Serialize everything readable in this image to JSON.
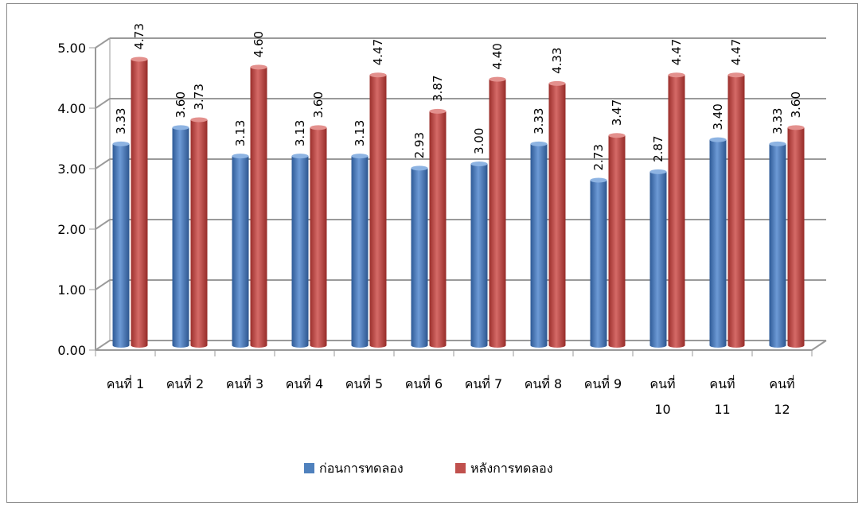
{
  "chart_data": {
    "type": "bar",
    "title": "",
    "xlabel": "",
    "ylabel": "",
    "ylim": [
      0,
      5
    ],
    "yticks": [
      "0.00",
      "1.00",
      "2.00",
      "3.00",
      "4.00",
      "5.00"
    ],
    "grid": true,
    "legend_position": "bottom",
    "categories": [
      [
        "คนที่ 1"
      ],
      [
        "คนที่ 2"
      ],
      [
        "คนที่ 3"
      ],
      [
        "คนที่ 4"
      ],
      [
        "คนที่ 5"
      ],
      [
        "คนที่ 6"
      ],
      [
        "คนที่ 7"
      ],
      [
        "คนที่ 8"
      ],
      [
        "คนที่ 9"
      ],
      [
        "คนที่",
        "10"
      ],
      [
        "คนที่",
        "11"
      ],
      [
        "คนที่",
        "12"
      ]
    ],
    "series": [
      {
        "name": "ก่อนการทดลอง",
        "color": "#4F81BD",
        "values": [
          3.33,
          3.6,
          3.13,
          3.13,
          3.13,
          2.93,
          3.0,
          3.33,
          2.73,
          2.87,
          3.4,
          3.33
        ],
        "labels": [
          "3.33",
          "3.60",
          "3.13",
          "3.13",
          "3.13",
          "2.93",
          "3.00",
          "3.33",
          "2.73",
          "2.87",
          "3.40",
          "3.33"
        ]
      },
      {
        "name": "หลังการทดลอง",
        "color": "#C0504D",
        "values": [
          4.73,
          3.73,
          4.6,
          3.6,
          4.47,
          3.87,
          4.4,
          4.33,
          3.47,
          4.47,
          4.47,
          3.6
        ],
        "labels": [
          "4.73",
          "3.73",
          "4.60",
          "3.60",
          "4.47",
          "3.87",
          "4.40",
          "4.33",
          "3.47",
          "4.47",
          "4.47",
          "3.60"
        ]
      }
    ]
  }
}
